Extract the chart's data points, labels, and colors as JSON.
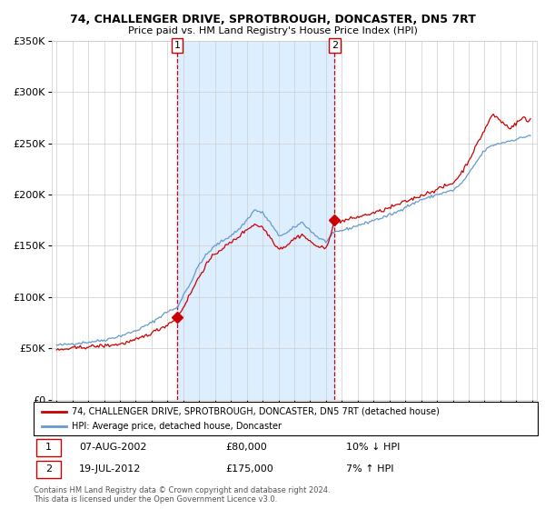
{
  "title1": "74, CHALLENGER DRIVE, SPROTBROUGH, DONCASTER, DN5 7RT",
  "title2": "Price paid vs. HM Land Registry's House Price Index (HPI)",
  "legend_line1": "74, CHALLENGER DRIVE, SPROTBROUGH, DONCASTER, DN5 7RT (detached house)",
  "legend_line2": "HPI: Average price, detached house, Doncaster",
  "sale1_date": "07-AUG-2002",
  "sale1_price": 80000,
  "sale1_hpi": "10% ↓ HPI",
  "sale2_date": "19-JUL-2012",
  "sale2_price": 175000,
  "sale2_hpi": "7% ↑ HPI",
  "footer": "Contains HM Land Registry data © Crown copyright and database right 2024.\nThis data is licensed under the Open Government Licence v3.0.",
  "red_color": "#cc0000",
  "blue_color": "#6699cc",
  "bg_color": "#ddeeff",
  "grid_color": "#cccccc",
  "ylim": [
    0,
    350000
  ],
  "yticks": [
    0,
    50000,
    100000,
    150000,
    200000,
    250000,
    300000,
    350000
  ],
  "sale1_x": 2002.6,
  "sale2_x": 2012.55,
  "sale1_y": 80000,
  "sale2_y": 175000,
  "xmin": 1994.7,
  "xmax": 2025.3,
  "hpi_keypoints": [
    [
      1995.0,
      53000
    ],
    [
      1995.5,
      53500
    ],
    [
      1996.0,
      54500
    ],
    [
      1997.0,
      56000
    ],
    [
      1998.0,
      58000
    ],
    [
      1999.0,
      62000
    ],
    [
      2000.0,
      67000
    ],
    [
      2001.0,
      75000
    ],
    [
      2002.0,
      86000
    ],
    [
      2002.6,
      89000
    ],
    [
      2003.0,
      102000
    ],
    [
      2003.5,
      115000
    ],
    [
      2004.0,
      132000
    ],
    [
      2004.5,
      142000
    ],
    [
      2005.0,
      150000
    ],
    [
      2005.5,
      155000
    ],
    [
      2006.0,
      160000
    ],
    [
      2006.5,
      166000
    ],
    [
      2007.0,
      175000
    ],
    [
      2007.5,
      185000
    ],
    [
      2008.0,
      182000
    ],
    [
      2008.5,
      172000
    ],
    [
      2009.0,
      160000
    ],
    [
      2009.5,
      162000
    ],
    [
      2010.0,
      168000
    ],
    [
      2010.5,
      173000
    ],
    [
      2011.0,
      165000
    ],
    [
      2011.5,
      158000
    ],
    [
      2012.0,
      154000
    ],
    [
      2012.55,
      163000
    ],
    [
      2013.0,
      165000
    ],
    [
      2013.5,
      167000
    ],
    [
      2014.0,
      170000
    ],
    [
      2014.5,
      172000
    ],
    [
      2015.0,
      175000
    ],
    [
      2015.5,
      177000
    ],
    [
      2016.0,
      180000
    ],
    [
      2016.5,
      183000
    ],
    [
      2017.0,
      188000
    ],
    [
      2017.5,
      191000
    ],
    [
      2018.0,
      195000
    ],
    [
      2018.5,
      197000
    ],
    [
      2019.0,
      200000
    ],
    [
      2019.5,
      202000
    ],
    [
      2020.0,
      204000
    ],
    [
      2020.5,
      210000
    ],
    [
      2021.0,
      220000
    ],
    [
      2021.5,
      232000
    ],
    [
      2022.0,
      243000
    ],
    [
      2022.5,
      248000
    ],
    [
      2023.0,
      250000
    ],
    [
      2023.5,
      252000
    ],
    [
      2024.0,
      254000
    ],
    [
      2024.5,
      256000
    ],
    [
      2024.9,
      258000
    ]
  ],
  "prop_keypoints": [
    [
      1995.0,
      48000
    ],
    [
      1995.5,
      49000
    ],
    [
      1996.0,
      50000
    ],
    [
      1997.0,
      51500
    ],
    [
      1998.0,
      52500
    ],
    [
      1999.0,
      54000
    ],
    [
      2000.0,
      58000
    ],
    [
      2001.0,
      65000
    ],
    [
      2002.0,
      73000
    ],
    [
      2002.6,
      80000
    ],
    [
      2003.0,
      90000
    ],
    [
      2003.5,
      105000
    ],
    [
      2004.0,
      120000
    ],
    [
      2004.5,
      133000
    ],
    [
      2005.0,
      142000
    ],
    [
      2005.5,
      148000
    ],
    [
      2006.0,
      153000
    ],
    [
      2006.5,
      159000
    ],
    [
      2007.0,
      166000
    ],
    [
      2007.5,
      171000
    ],
    [
      2008.0,
      168000
    ],
    [
      2008.5,
      158000
    ],
    [
      2009.0,
      147000
    ],
    [
      2009.5,
      150000
    ],
    [
      2010.0,
      157000
    ],
    [
      2010.5,
      161000
    ],
    [
      2011.0,
      154000
    ],
    [
      2011.5,
      149000
    ],
    [
      2012.0,
      147000
    ],
    [
      2012.55,
      175000
    ],
    [
      2013.0,
      174000
    ],
    [
      2013.5,
      176000
    ],
    [
      2014.0,
      178000
    ],
    [
      2014.5,
      180000
    ],
    [
      2015.0,
      182000
    ],
    [
      2015.5,
      184000
    ],
    [
      2016.0,
      187000
    ],
    [
      2016.5,
      190000
    ],
    [
      2017.0,
      193000
    ],
    [
      2017.5,
      196000
    ],
    [
      2018.0,
      199000
    ],
    [
      2018.5,
      202000
    ],
    [
      2019.0,
      205000
    ],
    [
      2019.5,
      208000
    ],
    [
      2020.0,
      211000
    ],
    [
      2020.5,
      220000
    ],
    [
      2021.0,
      233000
    ],
    [
      2021.5,
      248000
    ],
    [
      2022.0,
      263000
    ],
    [
      2022.3,
      272000
    ],
    [
      2022.5,
      278000
    ],
    [
      2022.8,
      275000
    ],
    [
      2023.0,
      272000
    ],
    [
      2023.3,
      268000
    ],
    [
      2023.6,
      265000
    ],
    [
      2023.9,
      268000
    ],
    [
      2024.2,
      272000
    ],
    [
      2024.5,
      276000
    ],
    [
      2024.7,
      270000
    ],
    [
      2024.9,
      274000
    ]
  ]
}
